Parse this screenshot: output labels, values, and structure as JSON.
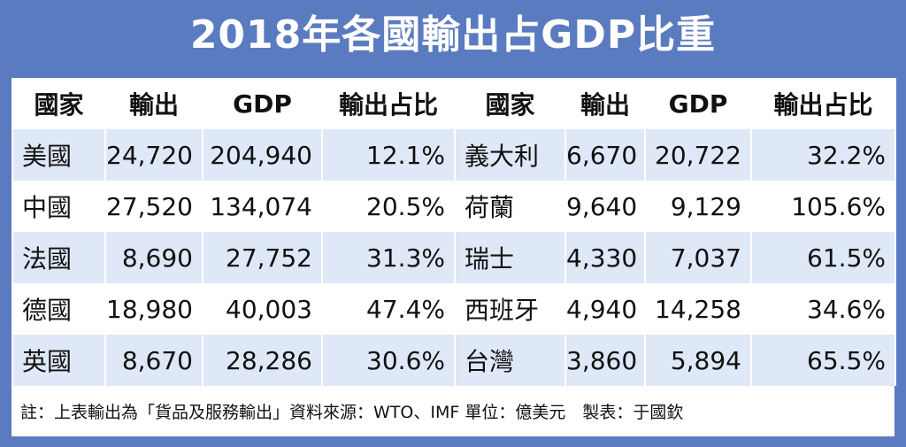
{
  "title": "2018年各國輸出占GDP比重",
  "headers": [
    "國家",
    "輸出",
    "GDP",
    "輸出占比",
    "國家",
    "輸出",
    "GDP",
    "輸出占比"
  ],
  "rows": [
    [
      "美國",
      "24,720",
      "204,940",
      "12.1%",
      "義大利",
      "6,670",
      "20,722",
      "32.2%"
    ],
    [
      "中國",
      "27,520",
      "134,074",
      "20.5%",
      "荷蘭",
      "9,640",
      "9,129",
      "105.6%"
    ],
    [
      "法國",
      "8,690",
      "27,752",
      "31.3%",
      "瑞士",
      "4,330",
      "7,037",
      "61.5%"
    ],
    [
      "德國",
      "18,980",
      "40,003",
      "47.4%",
      "西班牙",
      "4,940",
      "14,258",
      "34.6%"
    ],
    [
      "英國",
      "8,670",
      "28,286",
      "30.6%",
      "台灣",
      "3,860",
      "5,894",
      "65.5%"
    ]
  ],
  "note": "註：上表輸出為「貨品及服務輸出」資料來源：WTO、IMF 單位：億美元　製表：于國欽"
}
